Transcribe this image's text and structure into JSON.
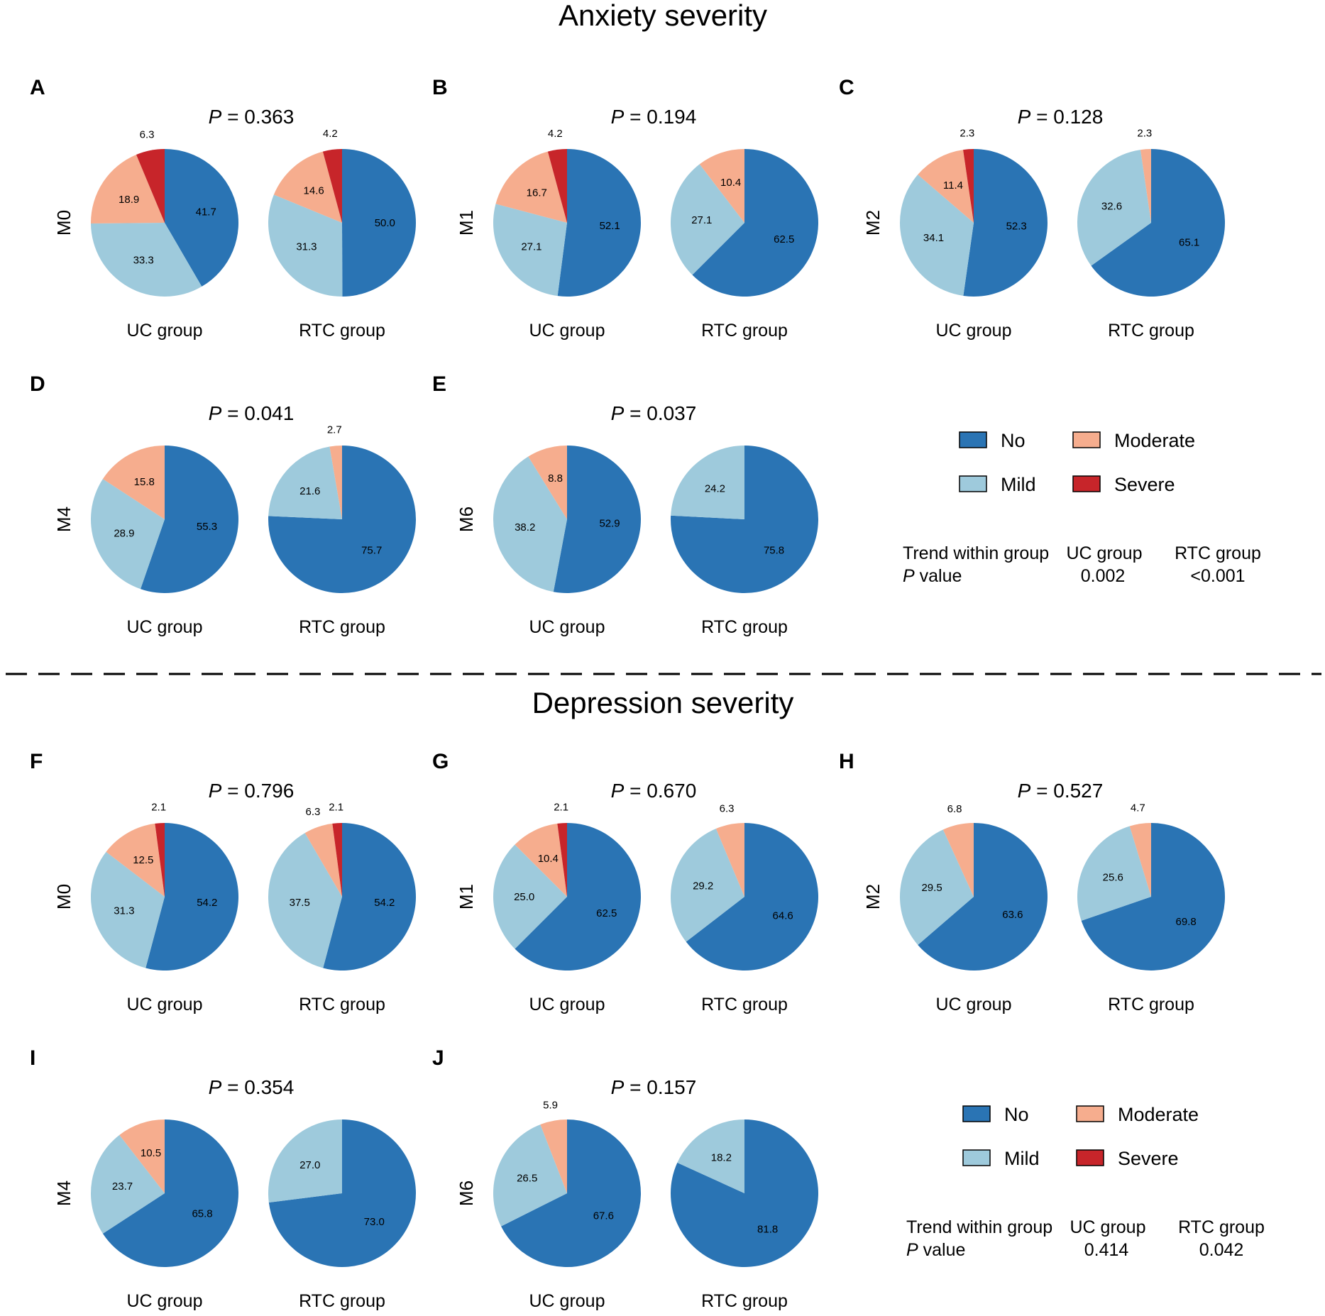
{
  "colors": {
    "No": "#2a74b4",
    "Mild": "#9ecadc",
    "Moderate": "#f6ad8e",
    "Severe": "#c7252a"
  },
  "sections": [
    {
      "title": "Anxiety severity",
      "legend": {
        "items": [
          {
            "key": "No",
            "label": "No"
          },
          {
            "key": "Moderate",
            "label": "Moderate"
          },
          {
            "key": "Mild",
            "label": "Mild"
          },
          {
            "key": "Severe",
            "label": "Severe"
          }
        ],
        "trend_label_line1": "Trend within group",
        "trend_label_p": "P",
        "trend_label_value": " value",
        "uc_header": "UC group",
        "rtc_header": "RTC group",
        "uc_value": "0.002",
        "rtc_value": "<0.001"
      }
    },
    {
      "title": "Depression severity",
      "legend": {
        "items": [
          {
            "key": "No",
            "label": "No"
          },
          {
            "key": "Moderate",
            "label": "Moderate"
          },
          {
            "key": "Mild",
            "label": "Mild"
          },
          {
            "key": "Severe",
            "label": "Severe"
          }
        ],
        "trend_label_line1": "Trend within group",
        "trend_label_p": "P",
        "trend_label_value": " value",
        "uc_header": "UC group",
        "rtc_header": "RTC group",
        "uc_value": "0.414",
        "rtc_value": "0.042"
      }
    }
  ],
  "chart_data": [
    {
      "type": "pie",
      "panel": "A",
      "section": "Anxiety severity",
      "timepoint": "M0",
      "p_prefix": "P",
      "p_value": "= 0.363",
      "groups": [
        {
          "name": "UC group",
          "slices": [
            {
              "category": "No",
              "value": 41.7
            },
            {
              "category": "Mild",
              "value": 33.3
            },
            {
              "category": "Moderate",
              "value": 18.9
            },
            {
              "category": "Severe",
              "value": 6.3
            }
          ]
        },
        {
          "name": "RTC group",
          "slices": [
            {
              "category": "No",
              "value": 50.0
            },
            {
              "category": "Mild",
              "value": 31.3
            },
            {
              "category": "Moderate",
              "value": 14.6
            },
            {
              "category": "Severe",
              "value": 4.2
            }
          ]
        }
      ]
    },
    {
      "type": "pie",
      "panel": "B",
      "section": "Anxiety severity",
      "timepoint": "M1",
      "p_prefix": "P",
      "p_value": "= 0.194",
      "groups": [
        {
          "name": "UC group",
          "slices": [
            {
              "category": "No",
              "value": 52.1
            },
            {
              "category": "Mild",
              "value": 27.1
            },
            {
              "category": "Moderate",
              "value": 16.7
            },
            {
              "category": "Severe",
              "value": 4.2
            }
          ]
        },
        {
          "name": "RTC group",
          "slices": [
            {
              "category": "No",
              "value": 62.5
            },
            {
              "category": "Mild",
              "value": 27.1
            },
            {
              "category": "Moderate",
              "value": 10.4
            }
          ]
        }
      ]
    },
    {
      "type": "pie",
      "panel": "C",
      "section": "Anxiety severity",
      "timepoint": "M2",
      "p_prefix": "P",
      "p_value": "= 0.128",
      "groups": [
        {
          "name": "UC group",
          "slices": [
            {
              "category": "No",
              "value": 52.3
            },
            {
              "category": "Mild",
              "value": 34.1
            },
            {
              "category": "Moderate",
              "value": 11.4
            },
            {
              "category": "Severe",
              "value": 2.3
            }
          ]
        },
        {
          "name": "RTC group",
          "slices": [
            {
              "category": "No",
              "value": 65.1
            },
            {
              "category": "Mild",
              "value": 32.6
            },
            {
              "category": "Moderate",
              "value": 2.3
            }
          ]
        }
      ]
    },
    {
      "type": "pie",
      "panel": "D",
      "section": "Anxiety severity",
      "timepoint": "M4",
      "p_prefix": "P",
      "p_value": "= 0.041",
      "groups": [
        {
          "name": "UC group",
          "slices": [
            {
              "category": "No",
              "value": 55.3
            },
            {
              "category": "Mild",
              "value": 28.9
            },
            {
              "category": "Moderate",
              "value": 15.8
            }
          ]
        },
        {
          "name": "RTC group",
          "slices": [
            {
              "category": "No",
              "value": 75.7
            },
            {
              "category": "Mild",
              "value": 21.6
            },
            {
              "category": "Moderate",
              "value": 2.7
            }
          ]
        }
      ]
    },
    {
      "type": "pie",
      "panel": "E",
      "section": "Anxiety severity",
      "timepoint": "M6",
      "p_prefix": "P",
      "p_value": "= 0.037",
      "groups": [
        {
          "name": "UC group",
          "slices": [
            {
              "category": "No",
              "value": 52.9
            },
            {
              "category": "Mild",
              "value": 38.2
            },
            {
              "category": "Moderate",
              "value": 8.8
            }
          ]
        },
        {
          "name": "RTC group",
          "slices": [
            {
              "category": "No",
              "value": 75.8
            },
            {
              "category": "Mild",
              "value": 24.2
            }
          ]
        }
      ]
    },
    {
      "type": "pie",
      "panel": "F",
      "section": "Depression severity",
      "timepoint": "M0",
      "p_prefix": "P",
      "p_value": "= 0.796",
      "groups": [
        {
          "name": "UC group",
          "slices": [
            {
              "category": "No",
              "value": 54.2
            },
            {
              "category": "Mild",
              "value": 31.3
            },
            {
              "category": "Moderate",
              "value": 12.5
            },
            {
              "category": "Severe",
              "value": 2.1
            }
          ]
        },
        {
          "name": "RTC group",
          "slices": [
            {
              "category": "No",
              "value": 54.2
            },
            {
              "category": "Mild",
              "value": 37.5
            },
            {
              "category": "Moderate",
              "value": 6.3
            },
            {
              "category": "Severe",
              "value": 2.1
            }
          ]
        }
      ]
    },
    {
      "type": "pie",
      "panel": "G",
      "section": "Depression severity",
      "timepoint": "M1",
      "p_prefix": "P",
      "p_value": "= 0.670",
      "groups": [
        {
          "name": "UC group",
          "slices": [
            {
              "category": "No",
              "value": 62.5
            },
            {
              "category": "Mild",
              "value": 25.0
            },
            {
              "category": "Moderate",
              "value": 10.4
            },
            {
              "category": "Severe",
              "value": 2.1
            }
          ]
        },
        {
          "name": "RTC group",
          "slices": [
            {
              "category": "No",
              "value": 64.6
            },
            {
              "category": "Mild",
              "value": 29.2
            },
            {
              "category": "Moderate",
              "value": 6.3
            }
          ]
        }
      ]
    },
    {
      "type": "pie",
      "panel": "H",
      "section": "Depression severity",
      "timepoint": "M2",
      "p_prefix": "P",
      "p_value": "= 0.527",
      "groups": [
        {
          "name": "UC group",
          "slices": [
            {
              "category": "No",
              "value": 63.6
            },
            {
              "category": "Mild",
              "value": 29.5
            },
            {
              "category": "Moderate",
              "value": 6.8
            }
          ]
        },
        {
          "name": "RTC group",
          "slices": [
            {
              "category": "No",
              "value": 69.8
            },
            {
              "category": "Mild",
              "value": 25.6
            },
            {
              "category": "Moderate",
              "value": 4.7
            }
          ]
        }
      ]
    },
    {
      "type": "pie",
      "panel": "I",
      "section": "Depression severity",
      "timepoint": "M4",
      "p_prefix": "P",
      "p_value": "= 0.354",
      "groups": [
        {
          "name": "UC group",
          "slices": [
            {
              "category": "No",
              "value": 65.8
            },
            {
              "category": "Mild",
              "value": 23.7
            },
            {
              "category": "Moderate",
              "value": 10.5
            }
          ]
        },
        {
          "name": "RTC group",
          "slices": [
            {
              "category": "No",
              "value": 73.0
            },
            {
              "category": "Mild",
              "value": 27.0
            }
          ]
        }
      ]
    },
    {
      "type": "pie",
      "panel": "J",
      "section": "Depression severity",
      "timepoint": "M6",
      "p_prefix": "P",
      "p_value": "= 0.157",
      "groups": [
        {
          "name": "UC group",
          "slices": [
            {
              "category": "No",
              "value": 67.6
            },
            {
              "category": "Mild",
              "value": 26.5
            },
            {
              "category": "Moderate",
              "value": 5.9
            }
          ]
        },
        {
          "name": "RTC group",
          "slices": [
            {
              "category": "No",
              "value": 81.8
            },
            {
              "category": "Mild",
              "value": 18.2
            }
          ]
        }
      ]
    }
  ]
}
